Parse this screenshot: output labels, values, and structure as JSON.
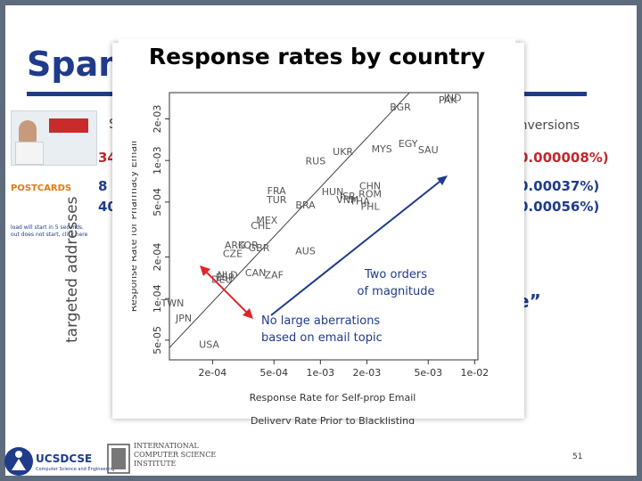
{
  "background_slide": {
    "title": "Spam",
    "conversions_header": "onversions",
    "header_s": "S",
    "row1_left": "34",
    "row1_right": "0.000008%)",
    "row2_left": "8",
    "row2_right": "0.00037%)",
    "row3_left": "40",
    "row3_right": "0.00056%)",
    "y_label": "targeted addresses",
    "quote": "e”",
    "postcard_brand": "POSTCARDS",
    "postcard_note": "load will start in 5 seconds. out does not start, click here",
    "page_number": "51"
  },
  "chart_title": "Response rates by country",
  "chart_data": {
    "type": "scatter",
    "title": "Response rates by country",
    "xlabel": "Response Rate for Self-prop Email",
    "xlabel2": "Delivery Rate Prior to Blacklisting",
    "ylabel": "Response Rate for Pharmacy Email",
    "xscale": "log",
    "yscale": "log",
    "xlim": [
      0.000105,
      0.0105
    ],
    "ylim": [
      3.6e-05,
      0.0031
    ],
    "x_ticks": [
      {
        "value": 0.0002,
        "label": "2e-04"
      },
      {
        "value": 0.0005,
        "label": "5e-04"
      },
      {
        "value": 0.001,
        "label": "1e-03"
      },
      {
        "value": 0.002,
        "label": "2e-03"
      },
      {
        "value": 0.005,
        "label": "5e-03"
      },
      {
        "value": 0.01,
        "label": "1e-02"
      }
    ],
    "y_ticks": [
      {
        "value": 5e-05,
        "label": "5e-05"
      },
      {
        "value": 0.0001,
        "label": "1e-04"
      },
      {
        "value": 0.0002,
        "label": "2e-04"
      },
      {
        "value": 0.0005,
        "label": "5e-04"
      },
      {
        "value": 0.001,
        "label": "1e-03"
      },
      {
        "value": 0.002,
        "label": "2e-03"
      }
    ],
    "points": [
      {
        "label": "IND",
        "x": 0.0072,
        "y": 0.0027
      },
      {
        "label": "PAK",
        "x": 0.0067,
        "y": 0.0026
      },
      {
        "label": "BGR",
        "x": 0.0033,
        "y": 0.0023
      },
      {
        "label": "EGY",
        "x": 0.0037,
        "y": 0.00125
      },
      {
        "label": "MYS",
        "x": 0.0025,
        "y": 0.00115
      },
      {
        "label": "SAU",
        "x": 0.005,
        "y": 0.00113
      },
      {
        "label": "UKR",
        "x": 0.0014,
        "y": 0.0011
      },
      {
        "label": "RUS",
        "x": 0.00093,
        "y": 0.00094
      },
      {
        "label": "CHN",
        "x": 0.0021,
        "y": 0.00062
      },
      {
        "label": "FRA",
        "x": 0.00052,
        "y": 0.00057
      },
      {
        "label": "HUN",
        "x": 0.0012,
        "y": 0.00056
      },
      {
        "label": "ROM",
        "x": 0.0021,
        "y": 0.00054
      },
      {
        "label": "ISR",
        "x": 0.0015,
        "y": 0.00052
      },
      {
        "label": "TUR",
        "x": 0.00052,
        "y": 0.00049
      },
      {
        "label": "VNM",
        "x": 0.0015,
        "y": 0.00049
      },
      {
        "label": "THA",
        "x": 0.0018,
        "y": 0.00048
      },
      {
        "label": "BRA",
        "x": 0.0008,
        "y": 0.00045
      },
      {
        "label": "PHL",
        "x": 0.0021,
        "y": 0.00044
      },
      {
        "label": "MEX",
        "x": 0.00045,
        "y": 0.00035
      },
      {
        "label": "CHL",
        "x": 0.00041,
        "y": 0.00032
      },
      {
        "label": "ARG",
        "x": 0.00028,
        "y": 0.00023
      },
      {
        "label": "KOR",
        "x": 0.00034,
        "y": 0.00023
      },
      {
        "label": "GBR",
        "x": 0.0004,
        "y": 0.00022
      },
      {
        "label": "AUS",
        "x": 0.0008,
        "y": 0.00021
      },
      {
        "label": "CZE",
        "x": 0.00027,
        "y": 0.0002
      },
      {
        "label": "CAN",
        "x": 0.00038,
        "y": 0.000145
      },
      {
        "label": "ZAF",
        "x": 0.0005,
        "y": 0.00014
      },
      {
        "label": "NLD",
        "x": 0.00025,
        "y": 0.00014
      },
      {
        "label": "ESP",
        "x": 0.00024,
        "y": 0.000135
      },
      {
        "label": "DEU",
        "x": 0.00023,
        "y": 0.00013
      },
      {
        "label": "TWN",
        "x": 0.00011,
        "y": 8.8e-05
      },
      {
        "label": "JPN",
        "x": 0.00013,
        "y": 6.8e-05
      },
      {
        "label": "USA",
        "x": 0.00019,
        "y": 4.4e-05
      }
    ],
    "diagonal_line": true,
    "annotations": [
      {
        "text_lines": [
          "Two orders",
          "of magnitude"
        ],
        "color": "#1f3b8a"
      },
      {
        "text_lines": [
          "No large aberrations",
          "based on email topic"
        ],
        "color": "#1f3b8a"
      }
    ],
    "arrow_color": "#e0242b",
    "arrow2_color": "#1f3b8a"
  },
  "footer": {
    "ucsd_label": "UCSDCSE",
    "ucsd_sub": "Computer Science and Engineering",
    "icsi_lines": [
      "INTERNATIONAL",
      "COMPUTER SCIENCE",
      "INSTITUTE"
    ]
  },
  "colors": {
    "title_blue": "#1f3b8a",
    "accent_red": "#c0272d"
  }
}
